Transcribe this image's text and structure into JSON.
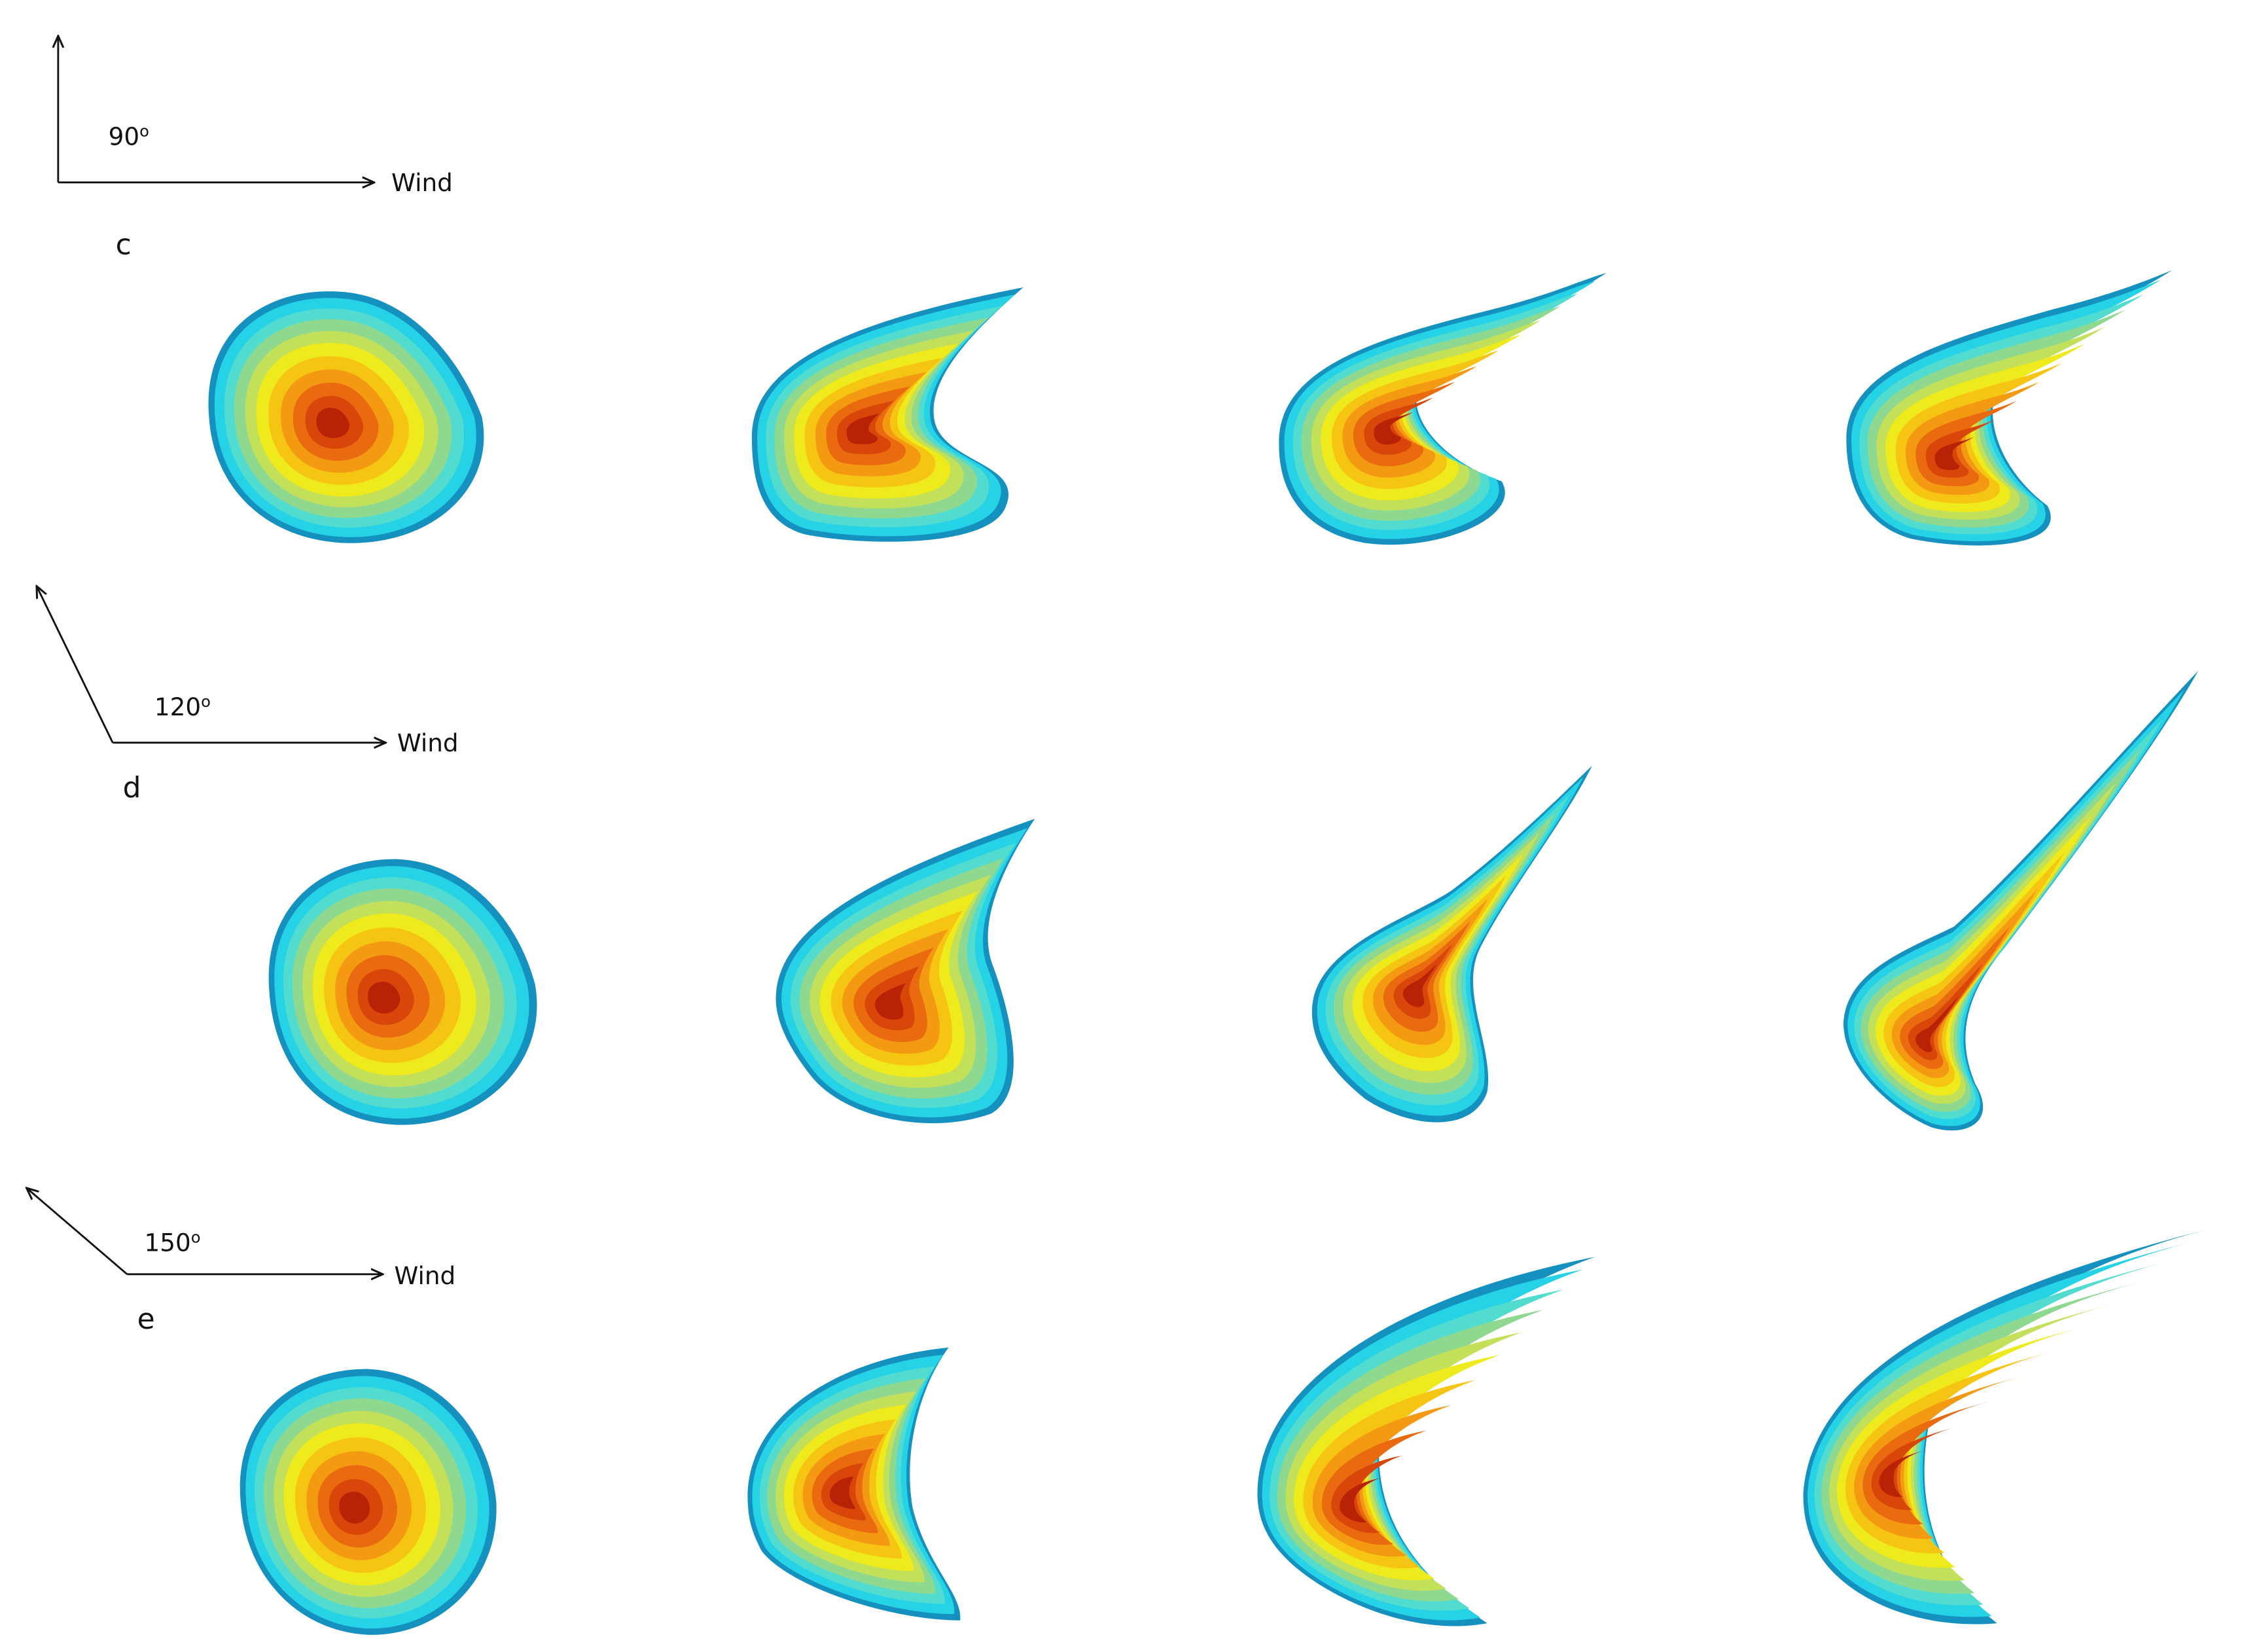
{
  "panels": [
    {
      "label": "c",
      "angle": "90",
      "degree": "o",
      "wind": "Wind"
    },
    {
      "label": "d",
      "angle": "120",
      "degree": "o",
      "wind": "Wind"
    },
    {
      "label": "e",
      "angle": "150",
      "degree": "o",
      "wind": "Wind"
    }
  ]
}
